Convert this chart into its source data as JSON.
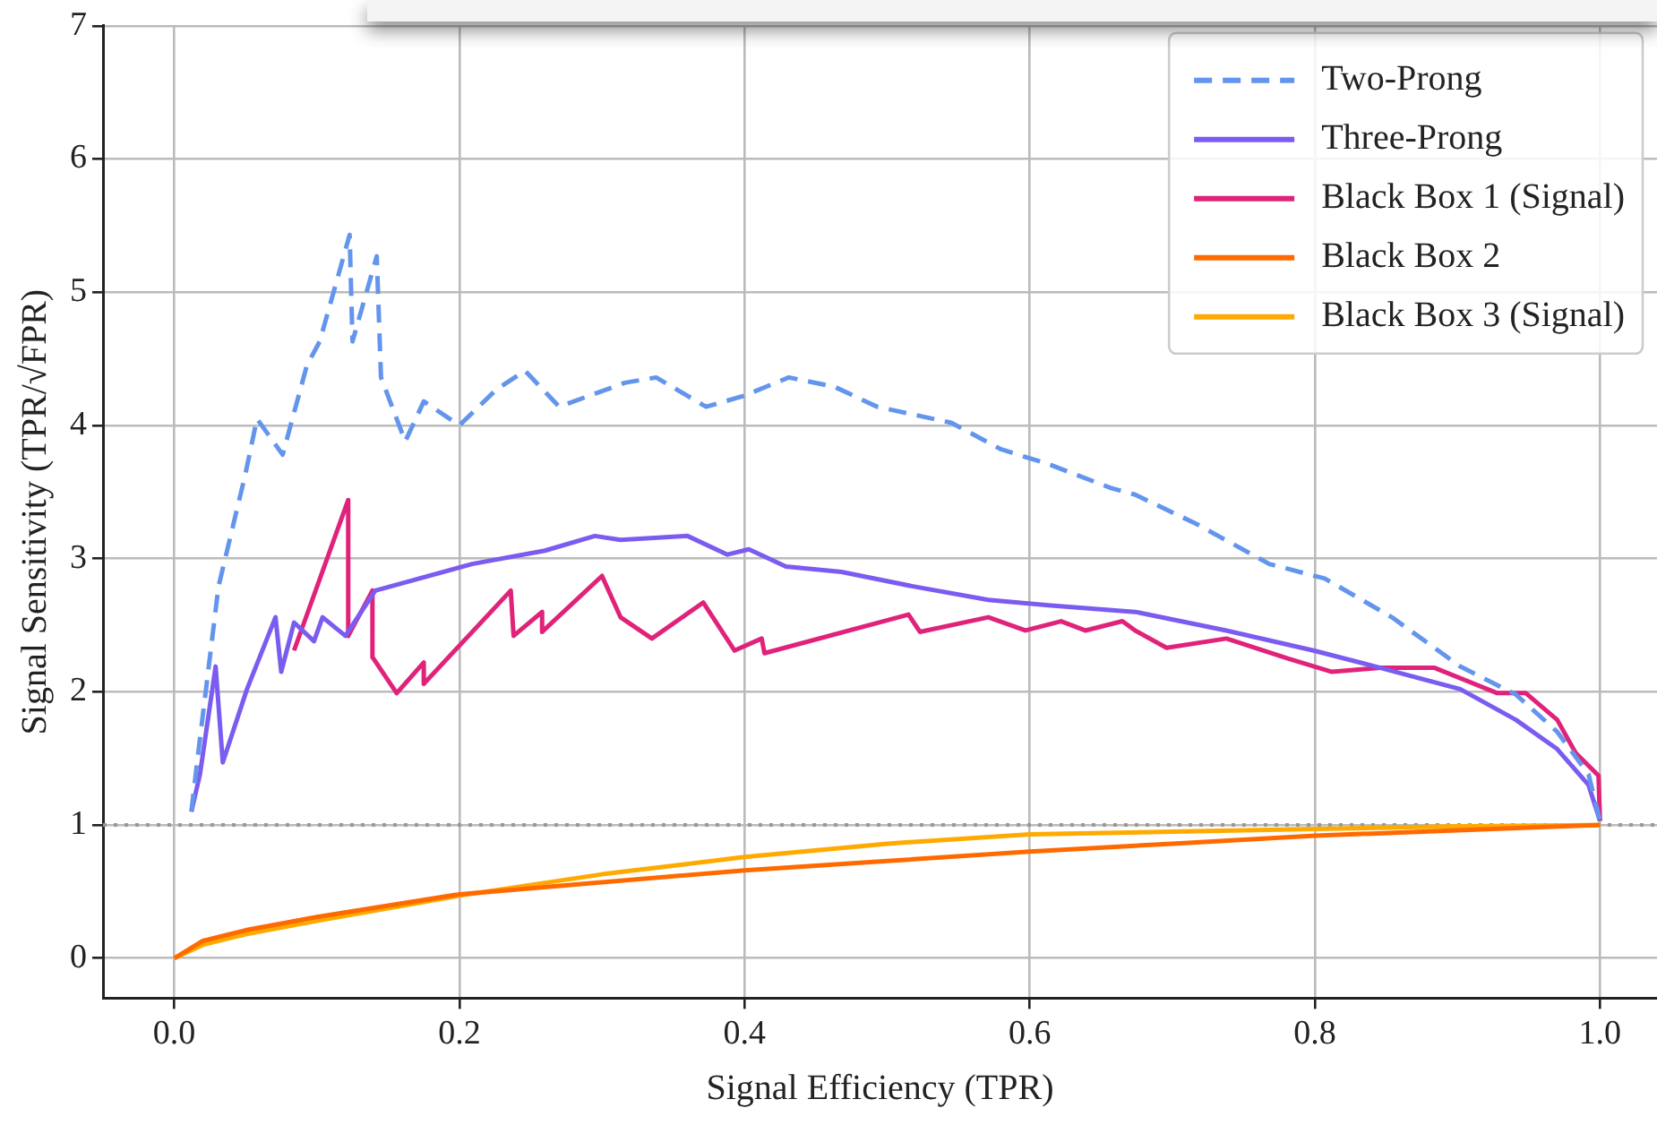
{
  "chart_data": {
    "type": "line",
    "xlabel": "Signal Efficiency (TPR)",
    "ylabel": "Signal Sensitivity (TPR/√FPR)",
    "xlim": [
      -0.05,
      1.04
    ],
    "xticks": [
      {
        "value": 0,
        "label": "0.0"
      },
      0.2,
      0.4,
      0.6,
      0.8,
      {
        "value": 1,
        "label": "1.0"
      }
    ],
    "ylim": [
      -0.3,
      7
    ],
    "yticks": [
      0,
      1,
      2,
      3,
      4,
      5,
      6,
      7
    ],
    "grid": true,
    "legend": "top right",
    "marker": "none",
    "ref_lines": [
      {
        "axis": "y",
        "value": 1,
        "color": "#999999",
        "line_style": "dotted"
      }
    ],
    "series": [
      {
        "name": "Two-Prong",
        "color": "#6495ed",
        "line_style": "dashed",
        "x": [
          0.012,
          0.016,
          0.031,
          0.05,
          0.058,
          0.076,
          0.093,
          0.102,
          0.123,
          0.125,
          0.142,
          0.145,
          0.162,
          0.175,
          0.2,
          0.226,
          0.246,
          0.27,
          0.316,
          0.338,
          0.373,
          0.399,
          0.431,
          0.463,
          0.493,
          0.545,
          0.58,
          0.613,
          0.657,
          0.674,
          0.717,
          0.768,
          0.807,
          0.854,
          0.902,
          0.941,
          0.97,
          0.992,
          1.0
        ],
        "values": [
          1.1,
          1.47,
          2.79,
          3.64,
          4.05,
          3.78,
          4.45,
          4.63,
          5.43,
          4.63,
          5.27,
          4.36,
          3.88,
          4.18,
          4.0,
          4.27,
          4.41,
          4.14,
          4.32,
          4.36,
          4.14,
          4.22,
          4.36,
          4.29,
          4.14,
          4.02,
          3.82,
          3.71,
          3.53,
          3.48,
          3.26,
          2.96,
          2.85,
          2.56,
          2.19,
          1.98,
          1.7,
          1.38,
          1.03
        ]
      },
      {
        "name": "Three-Prong",
        "color": "#7b5cf0",
        "line_style": "solid",
        "x": [
          0.012,
          0.018,
          0.029,
          0.034,
          0.051,
          0.071,
          0.075,
          0.084,
          0.098,
          0.104,
          0.12,
          0.141,
          0.209,
          0.26,
          0.295,
          0.313,
          0.36,
          0.388,
          0.403,
          0.429,
          0.468,
          0.519,
          0.571,
          0.613,
          0.674,
          0.738,
          0.799,
          0.846,
          0.902,
          0.941,
          0.97,
          0.992,
          1.0
        ],
        "values": [
          1.1,
          1.38,
          2.19,
          1.47,
          2.02,
          2.56,
          2.15,
          2.52,
          2.38,
          2.56,
          2.42,
          2.76,
          2.96,
          3.06,
          3.17,
          3.14,
          3.17,
          3.03,
          3.07,
          2.94,
          2.9,
          2.79,
          2.69,
          2.65,
          2.6,
          2.46,
          2.31,
          2.18,
          2.02,
          1.79,
          1.57,
          1.3,
          1.03
        ]
      },
      {
        "name": "Black Box 1 (Signal)",
        "color": "#e0237a",
        "line_style": "solid",
        "x": [
          0.084,
          0.122,
          0.122,
          0.139,
          0.139,
          0.156,
          0.175,
          0.175,
          0.236,
          0.238,
          0.258,
          0.258,
          0.3,
          0.313,
          0.335,
          0.371,
          0.393,
          0.412,
          0.414,
          0.515,
          0.523,
          0.571,
          0.597,
          0.622,
          0.639,
          0.665,
          0.674,
          0.696,
          0.738,
          0.781,
          0.812,
          0.846,
          0.884,
          0.928,
          0.948,
          0.97,
          0.983,
          0.999,
          1.0
        ],
        "values": [
          2.31,
          3.44,
          2.42,
          2.76,
          2.26,
          1.99,
          2.22,
          2.06,
          2.76,
          2.42,
          2.6,
          2.45,
          2.87,
          2.56,
          2.4,
          2.67,
          2.31,
          2.4,
          2.29,
          2.58,
          2.45,
          2.56,
          2.46,
          2.53,
          2.46,
          2.53,
          2.46,
          2.33,
          2.4,
          2.25,
          2.15,
          2.18,
          2.18,
          1.99,
          1.99,
          1.79,
          1.54,
          1.37,
          1.03
        ]
      },
      {
        "name": "Black Box 2",
        "color": "#ff6a00",
        "line_style": "solid",
        "x": [
          0,
          0.02,
          0.05,
          0.1,
          0.2,
          0.3,
          0.4,
          0.5,
          0.6,
          0.7,
          0.8,
          0.9,
          1.0
        ],
        "values": [
          0,
          0.13,
          0.21,
          0.31,
          0.48,
          0.57,
          0.66,
          0.73,
          0.8,
          0.86,
          0.92,
          0.96,
          1.0
        ]
      },
      {
        "name": "Black Box 3 (Signal)",
        "color": "#ffaa00",
        "line_style": "solid",
        "x": [
          0,
          0.02,
          0.05,
          0.1,
          0.2,
          0.3,
          0.4,
          0.5,
          0.6,
          0.7,
          0.8,
          0.9,
          1.0
        ],
        "values": [
          0,
          0.1,
          0.18,
          0.28,
          0.47,
          0.63,
          0.76,
          0.86,
          0.93,
          0.95,
          0.97,
          0.99,
          1.0
        ]
      }
    ]
  }
}
